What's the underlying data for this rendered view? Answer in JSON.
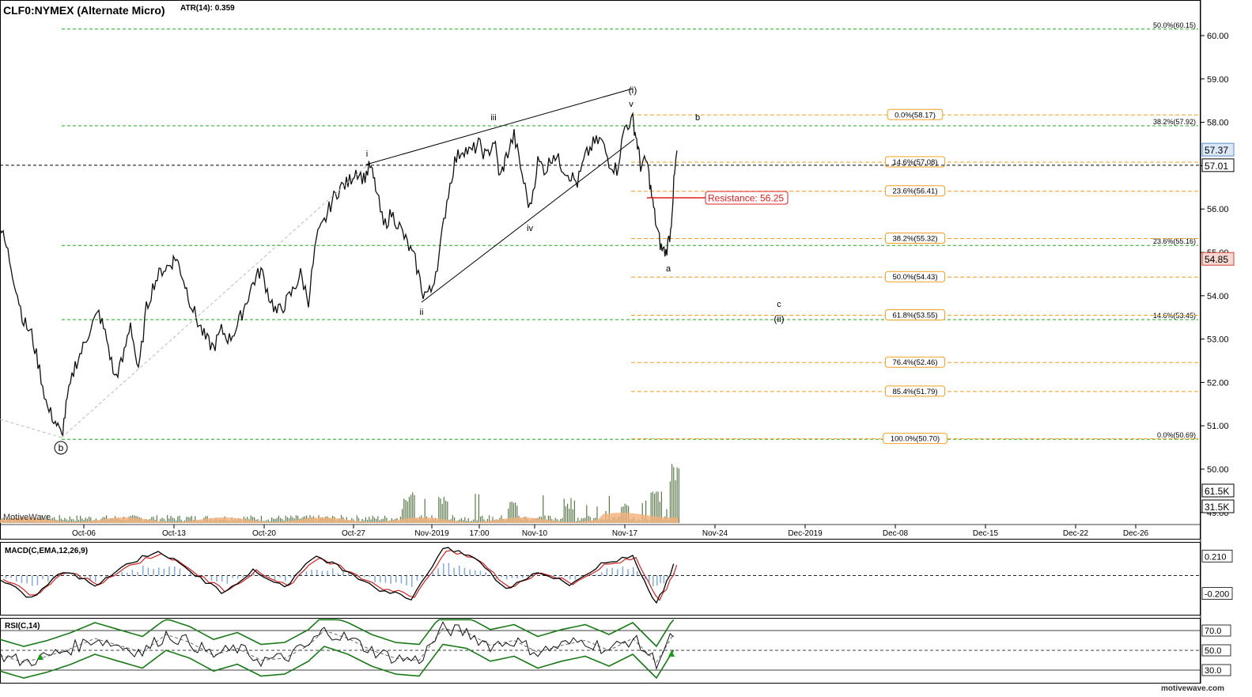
{
  "header": {
    "symbol_title": "CLF0:NYMEX (Alternate Micro)",
    "atr_label": "ATR(14): 0.359"
  },
  "watermark": "MotiveWave",
  "footer_brand": "motivewave.com",
  "colors": {
    "green_fib": "#22aa22",
    "orange_fib": "#f0a020",
    "resistance": "#e02020",
    "price_bars": "#101010",
    "volume": "#5a7a4a",
    "macd_hist": "#5a8fc8",
    "macd_line": "#000000",
    "signal_line": "#cc2222",
    "rsi_band": "#1a7a1a"
  },
  "chart_data": [
    {
      "type": "line",
      "title": "CLF0:NYMEX (Alternate Micro)",
      "ylim": [
        49.4,
        60.55
      ],
      "x_ticks": [
        "Oct-06",
        "Oct-13",
        "Oct-20",
        "Oct-27",
        "Nov-2019",
        "17:00",
        "Nov-10",
        "Nov-17",
        "Nov-24",
        "Dec-2019",
        "Dec-08",
        "Dec-15",
        "Dec-22",
        "Dec-26"
      ],
      "y_ticks": [
        "60.00",
        "59.00",
        "58.00",
        "57.00",
        "56.00",
        "55.00",
        "54.00",
        "53.00",
        "52.00",
        "51.00",
        "50.00",
        "49.00"
      ],
      "price_labels": {
        "last": "57.37",
        "crosshair": "57.01",
        "retrace_ref": "54.85",
        "volume_high": "61.5K",
        "volume_avg": "31.5K"
      },
      "green_fibs": [
        {
          "label": "50.0%(60.15)",
          "value": 60.15
        },
        {
          "label": "38.2%(57.92)",
          "value": 57.92
        },
        {
          "label": "23.6%(55.16)",
          "value": 55.16
        },
        {
          "label": "14.6%(53.45)",
          "value": 53.45
        },
        {
          "label": "0.0%(50.69)",
          "value": 50.69
        }
      ],
      "orange_fibs": [
        {
          "label": "0.0%(58.17)",
          "value": 58.17
        },
        {
          "label": "14.6%(57.08)",
          "value": 57.08
        },
        {
          "label": "23.6%(56.41)",
          "value": 56.41
        },
        {
          "label": "38.2%(55.32)",
          "value": 55.32
        },
        {
          "label": "50.0%(54.43)",
          "value": 54.43
        },
        {
          "label": "61.8%(53.55)",
          "value": 53.55
        },
        {
          "label": "76.4%(52.46)",
          "value": 52.46
        },
        {
          "label": "85.4%(51.79)",
          "value": 51.79
        },
        {
          "label": "100.0%(50.70)",
          "value": 50.7
        }
      ],
      "resistance": {
        "label": "Resistance: 56.25",
        "value": 56.25
      },
      "wave_labels": [
        "(b)",
        "i",
        "ii",
        "iii",
        "iv",
        "v",
        "(i)",
        "a",
        "b",
        "c",
        "(ii)"
      ],
      "price_path": [
        [
          0,
          55.6
        ],
        [
          10,
          55.0
        ],
        [
          20,
          54.2
        ],
        [
          30,
          53.4
        ],
        [
          40,
          53.1
        ],
        [
          50,
          52.3
        ],
        [
          60,
          51.4
        ],
        [
          70,
          51.1
        ],
        [
          78,
          50.75
        ],
        [
          85,
          51.6
        ],
        [
          95,
          52.4
        ],
        [
          105,
          52.8
        ],
        [
          115,
          53.3
        ],
        [
          125,
          53.6
        ],
        [
          135,
          53.0
        ],
        [
          145,
          52.1
        ],
        [
          155,
          52.5
        ],
        [
          165,
          53.4
        ],
        [
          175,
          52.2
        ],
        [
          185,
          53.7
        ],
        [
          195,
          54.3
        ],
        [
          205,
          54.6
        ],
        [
          215,
          54.7
        ],
        [
          222,
          54.9
        ],
        [
          230,
          54.5
        ],
        [
          240,
          53.9
        ],
        [
          250,
          53.4
        ],
        [
          260,
          53.0
        ],
        [
          270,
          52.8
        ],
        [
          280,
          53.2
        ],
        [
          290,
          53.0
        ],
        [
          300,
          53.3
        ],
        [
          310,
          53.8
        ],
        [
          320,
          54.3
        ],
        [
          330,
          54.6
        ],
        [
          340,
          54.0
        ],
        [
          350,
          53.6
        ],
        [
          360,
          53.8
        ],
        [
          370,
          54.1
        ],
        [
          380,
          54.5
        ],
        [
          390,
          53.9
        ],
        [
          400,
          55.3
        ],
        [
          410,
          55.7
        ],
        [
          420,
          56.2
        ],
        [
          430,
          56.5
        ],
        [
          440,
          56.6
        ],
        [
          450,
          56.9
        ],
        [
          460,
          56.7
        ],
        [
          468,
          57.0
        ],
        [
          475,
          56.5
        ],
        [
          485,
          55.6
        ],
        [
          495,
          55.9
        ],
        [
          505,
          55.6
        ],
        [
          515,
          55.2
        ],
        [
          525,
          54.8
        ],
        [
          535,
          54.05
        ],
        [
          545,
          54.1
        ],
        [
          555,
          54.9
        ],
        [
          565,
          56.2
        ],
        [
          575,
          57.1
        ],
        [
          585,
          57.4
        ],
        [
          595,
          57.3
        ],
        [
          605,
          57.5
        ],
        [
          615,
          57.2
        ],
        [
          625,
          57.6
        ],
        [
          632,
          56.7
        ],
        [
          640,
          57.2
        ],
        [
          650,
          57.7
        ],
        [
          660,
          56.8
        ],
        [
          670,
          56.0
        ],
        [
          680,
          57.1
        ],
        [
          690,
          56.9
        ],
        [
          700,
          57.3
        ],
        [
          710,
          57.0
        ],
        [
          720,
          56.8
        ],
        [
          730,
          56.6
        ],
        [
          740,
          57.2
        ],
        [
          750,
          57.5
        ],
        [
          760,
          57.6
        ],
        [
          770,
          57.1
        ],
        [
          780,
          56.9
        ],
        [
          790,
          57.9
        ],
        [
          800,
          58.05
        ],
        [
          805,
          57.6
        ],
        [
          810,
          57.0
        ],
        [
          818,
          57.1
        ],
        [
          824,
          56.3
        ],
        [
          830,
          55.6
        ],
        [
          836,
          55.1
        ],
        [
          842,
          55.0
        ],
        [
          848,
          55.5
        ],
        [
          852,
          56.6
        ],
        [
          856,
          57.35
        ]
      ],
      "volume_max_label": "61.5K",
      "volume_spikes": [
        [
          515,
          0.55
        ],
        [
          560,
          0.45
        ],
        [
          648,
          0.35
        ],
        [
          720,
          0.35
        ],
        [
          790,
          0.4
        ],
        [
          828,
          0.55
        ],
        [
          852,
          1.0
        ]
      ]
    },
    {
      "type": "line",
      "title": "MACD(C,EMA,12,26,9)",
      "ylim": [
        -0.42,
        0.36
      ],
      "y_tick_labels": [
        "0.210",
        "-0.200"
      ],
      "wave_cycle_points": [
        [
          0,
          -0.05
        ],
        [
          40,
          -0.25
        ],
        [
          80,
          0.05
        ],
        [
          120,
          -0.1
        ],
        [
          160,
          0.12
        ],
        [
          200,
          0.28
        ],
        [
          240,
          0.05
        ],
        [
          280,
          -0.18
        ],
        [
          320,
          0.05
        ],
        [
          360,
          -0.12
        ],
        [
          400,
          0.22
        ],
        [
          440,
          0.05
        ],
        [
          480,
          -0.15
        ],
        [
          520,
          -0.25
        ],
        [
          560,
          0.3
        ],
        [
          600,
          0.2
        ],
        [
          640,
          -0.15
        ],
        [
          680,
          0.05
        ],
        [
          720,
          -0.1
        ],
        [
          760,
          0.12
        ],
        [
          800,
          0.22
        ],
        [
          830,
          -0.32
        ],
        [
          856,
          0.2
        ]
      ]
    },
    {
      "type": "line",
      "title": "RSI(C,14)",
      "ylim": [
        18,
        82
      ],
      "y_tick_labels": [
        "70.0",
        "50.0",
        "30.0"
      ],
      "rsi_points": [
        [
          0,
          45
        ],
        [
          30,
          38
        ],
        [
          60,
          44
        ],
        [
          90,
          52
        ],
        [
          120,
          62
        ],
        [
          150,
          55
        ],
        [
          180,
          48
        ],
        [
          210,
          66
        ],
        [
          240,
          58
        ],
        [
          270,
          45
        ],
        [
          300,
          52
        ],
        [
          330,
          40
        ],
        [
          360,
          42
        ],
        [
          390,
          55
        ],
        [
          410,
          70
        ],
        [
          440,
          62
        ],
        [
          470,
          50
        ],
        [
          500,
          42
        ],
        [
          530,
          40
        ],
        [
          560,
          72
        ],
        [
          590,
          68
        ],
        [
          620,
          55
        ],
        [
          650,
          60
        ],
        [
          680,
          48
        ],
        [
          710,
          55
        ],
        [
          740,
          60
        ],
        [
          770,
          50
        ],
        [
          800,
          62
        ],
        [
          830,
          38
        ],
        [
          856,
          72
        ]
      ]
    }
  ]
}
